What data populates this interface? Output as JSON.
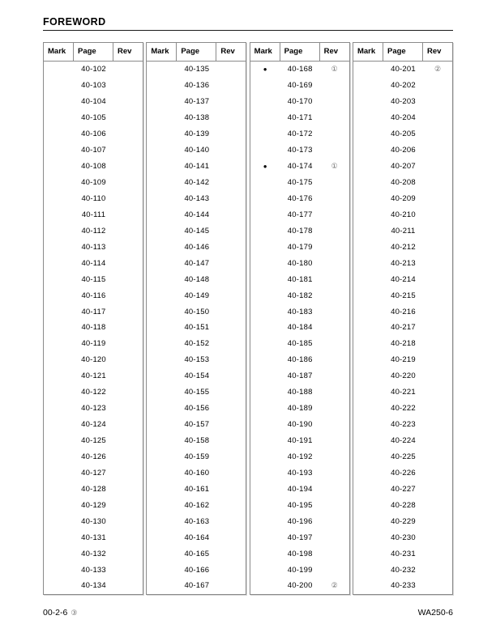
{
  "title": "FOREWORD",
  "columns": {
    "mark": "Mark",
    "page": "Page",
    "rev": "Rev"
  },
  "tables": [
    {
      "pages": [
        "40-102",
        "40-103",
        "40-104",
        "40-105",
        "40-106",
        "40-107",
        "40-108",
        "40-109",
        "40-110",
        "40-111",
        "40-112",
        "40-113",
        "40-114",
        "40-115",
        "40-116",
        "40-117",
        "40-118",
        "40-119",
        "40-120",
        "40-121",
        "40-122",
        "40-123",
        "40-124",
        "40-125",
        "40-126",
        "40-127",
        "40-128",
        "40-129",
        "40-130",
        "40-131",
        "40-132",
        "40-133",
        "40-134"
      ],
      "marks": {},
      "revs": {}
    },
    {
      "pages": [
        "40-135",
        "40-136",
        "40-137",
        "40-138",
        "40-139",
        "40-140",
        "40-141",
        "40-142",
        "40-143",
        "40-144",
        "40-145",
        "40-146",
        "40-147",
        "40-148",
        "40-149",
        "40-150",
        "40-151",
        "40-152",
        "40-153",
        "40-154",
        "40-155",
        "40-156",
        "40-157",
        "40-158",
        "40-159",
        "40-160",
        "40-161",
        "40-162",
        "40-163",
        "40-164",
        "40-165",
        "40-166",
        "40-167"
      ],
      "marks": {},
      "revs": {}
    },
    {
      "pages": [
        "40-168",
        "40-169",
        "40-170",
        "40-171",
        "40-172",
        "40-173",
        "40-174",
        "40-175",
        "40-176",
        "40-177",
        "40-178",
        "40-179",
        "40-180",
        "40-181",
        "40-182",
        "40-183",
        "40-184",
        "40-185",
        "40-186",
        "40-187",
        "40-188",
        "40-189",
        "40-190",
        "40-191",
        "40-192",
        "40-193",
        "40-194",
        "40-195",
        "40-196",
        "40-197",
        "40-198",
        "40-199",
        "40-200"
      ],
      "marks": {
        "40-168": "●",
        "40-174": "●"
      },
      "revs": {
        "40-168": "①",
        "40-174": "①",
        "40-200": "②"
      }
    },
    {
      "pages": [
        "40-201",
        "40-202",
        "40-203",
        "40-204",
        "40-205",
        "40-206",
        "40-207",
        "40-208",
        "40-209",
        "40-210",
        "40-211",
        "40-212",
        "40-213",
        "40-214",
        "40-215",
        "40-216",
        "40-217",
        "40-218",
        "40-219",
        "40-220",
        "40-221",
        "40-222",
        "40-223",
        "40-224",
        "40-225",
        "40-226",
        "40-227",
        "40-228",
        "40-229",
        "40-230",
        "40-231",
        "40-232",
        "40-233"
      ],
      "marks": {},
      "revs": {
        "40-201": "②"
      }
    }
  ],
  "footer": {
    "left": "00-2-6",
    "left_rev": "③",
    "right": "WA250-6"
  }
}
